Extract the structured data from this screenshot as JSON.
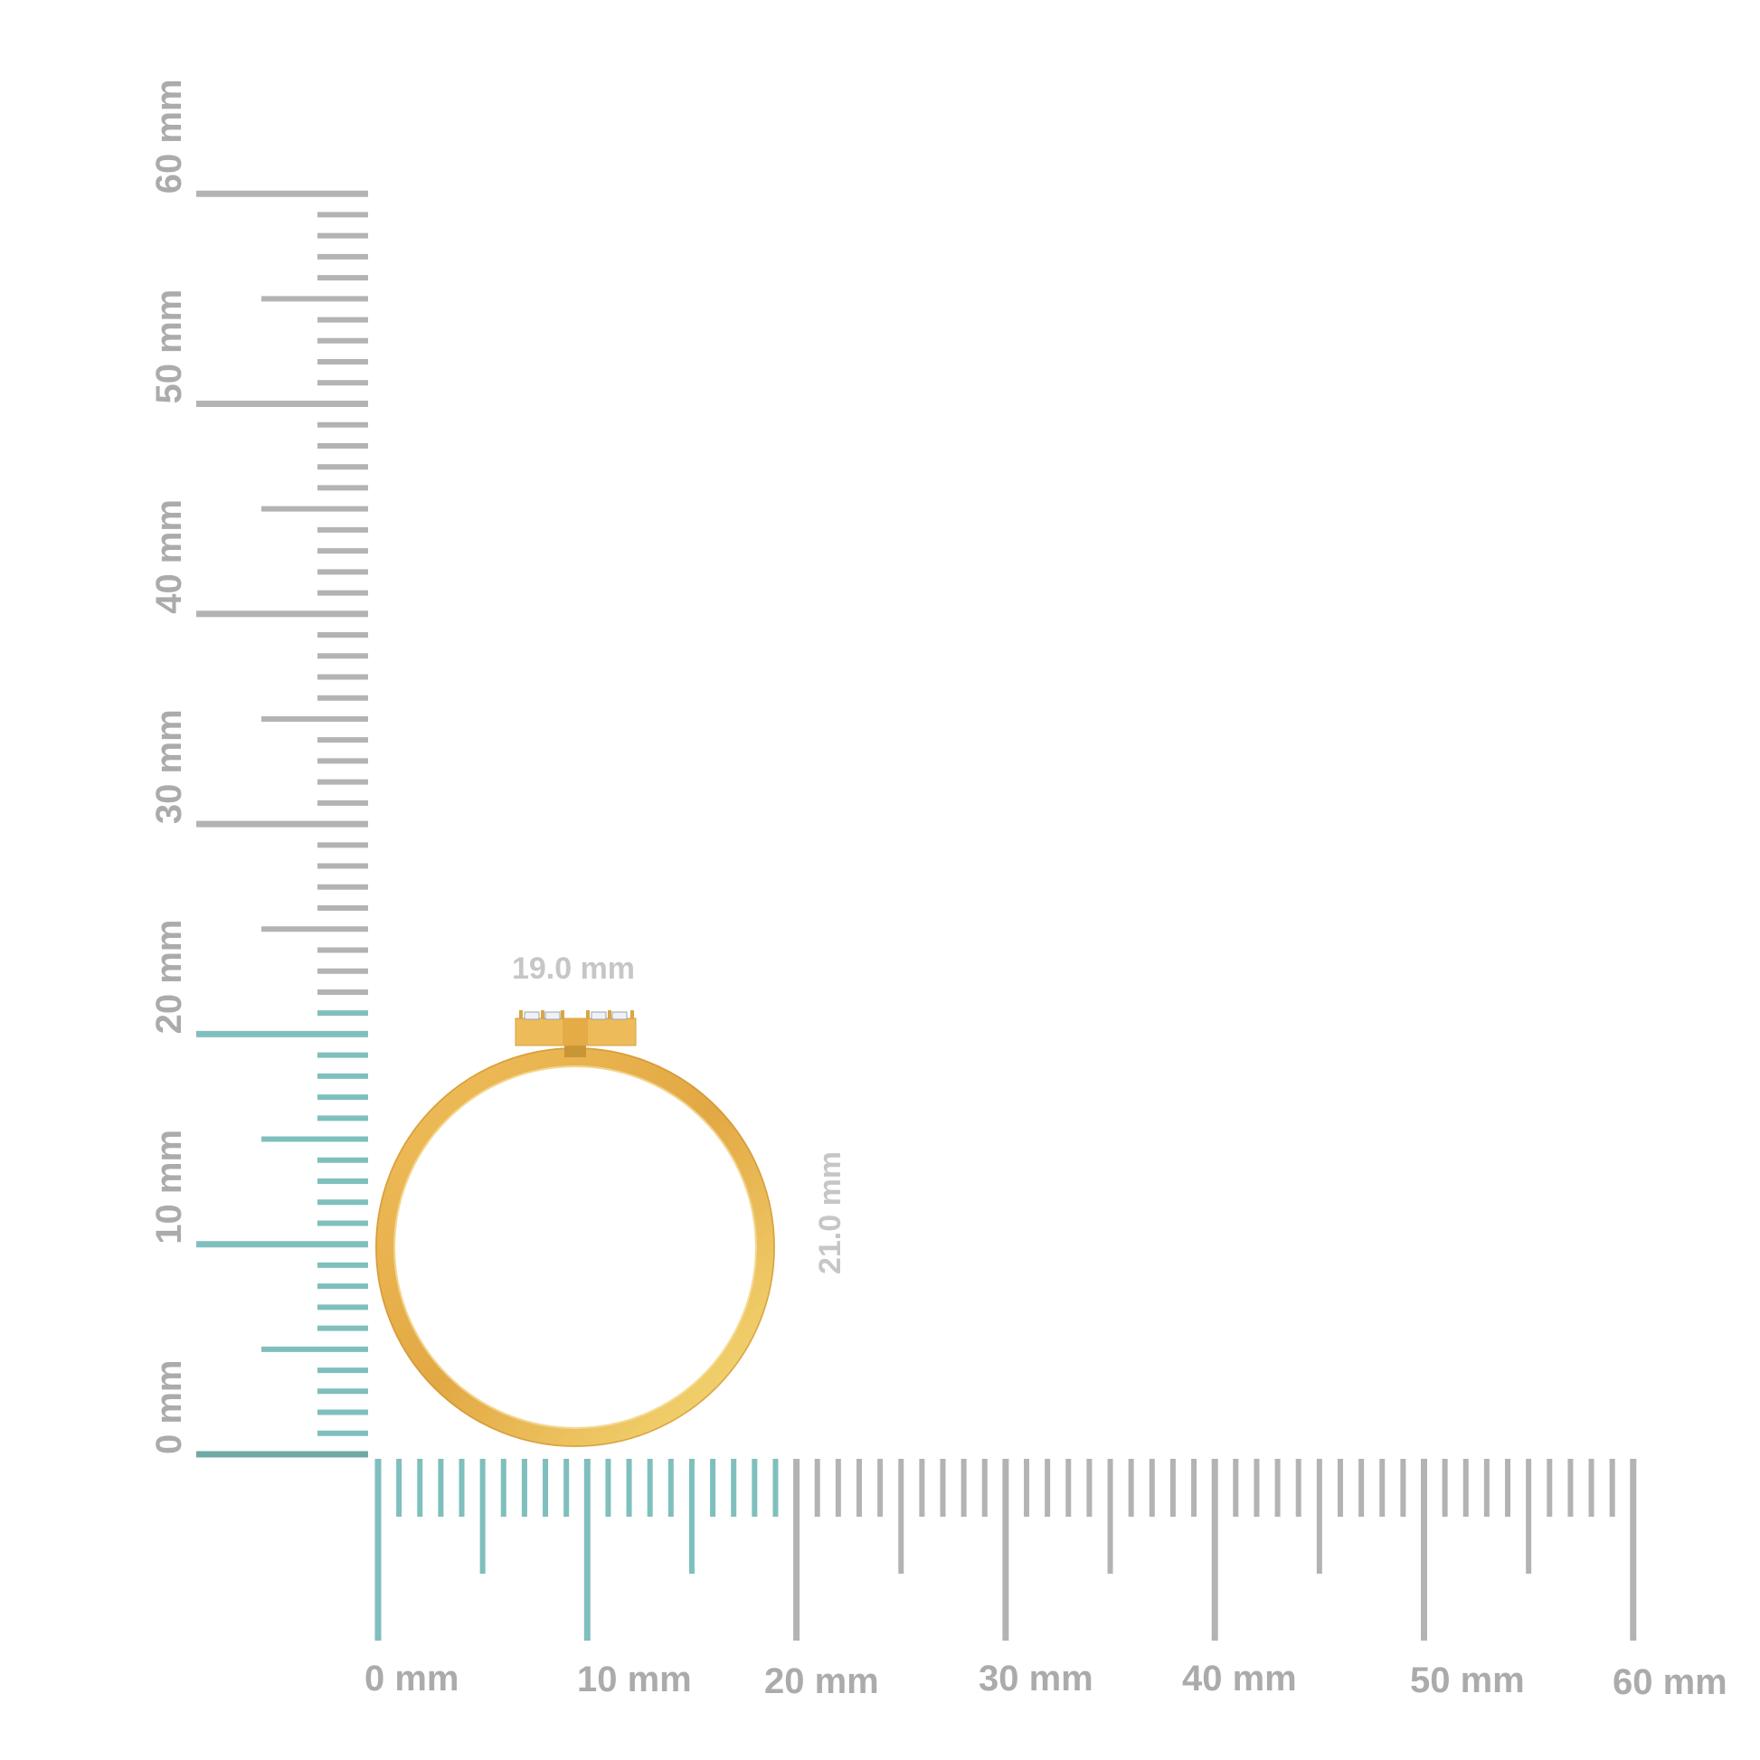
{
  "vertical_ruler": {
    "labels": [
      "0 mm",
      "10 mm",
      "20 mm",
      "30 mm",
      "40 mm",
      "50 mm",
      "60 mm"
    ],
    "max_mm": 60,
    "highlight_to_mm": 21
  },
  "horizontal_ruler": {
    "labels": [
      "0 mm",
      "10 mm",
      "20 mm",
      "30 mm",
      "40 mm",
      "50 mm",
      "60 mm"
    ],
    "max_mm": 60,
    "highlight_to_mm": 19
  },
  "dimensions": {
    "width_label": "19.0 mm",
    "height_label": "21.0 mm"
  },
  "colors": {
    "highlight": "#7fbfbd",
    "ruler": "#b3b3b3",
    "gold": "#e8b04a"
  }
}
